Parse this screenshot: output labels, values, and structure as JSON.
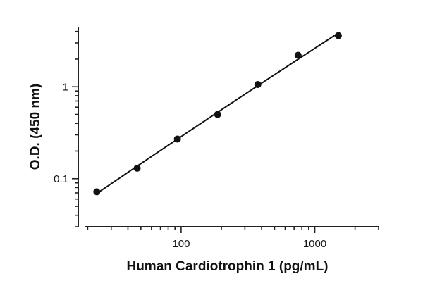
{
  "chart_data": {
    "type": "scatter",
    "xlabel": "Human Cardiotrophin 1 (pg/mL)",
    "ylabel": "O.D. (450 nm)",
    "xscale": "log",
    "yscale": "log",
    "xlim": [
      17,
      3000
    ],
    "ylim": [
      0.03,
      4.5
    ],
    "x_tick_labels": [
      {
        "value": 100,
        "label": "100"
      },
      {
        "value": 1000,
        "label": "1000"
      }
    ],
    "y_tick_labels": [
      {
        "value": 0.1,
        "label": "0.1"
      },
      {
        "value": 1,
        "label": "1"
      }
    ],
    "series": [
      {
        "x": [
          23.4,
          46.9,
          93.8,
          187.5,
          375,
          750,
          1500
        ],
        "y": [
          0.072,
          0.13,
          0.27,
          0.5,
          1.06,
          2.2,
          3.6
        ]
      }
    ],
    "fit_curve": true,
    "grid": false,
    "legend": "none"
  }
}
